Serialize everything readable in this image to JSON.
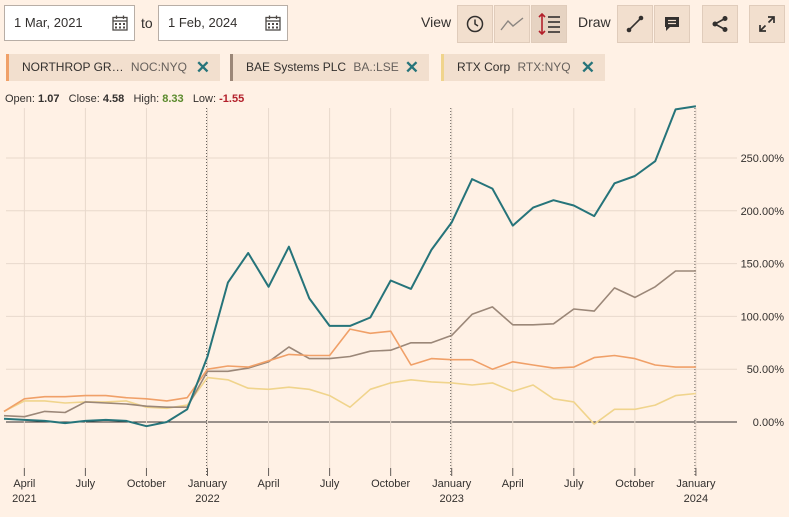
{
  "controls": {
    "start_date": "1 Mar, 2021",
    "to_label": "to",
    "end_date": "1 Feb, 2024",
    "view_label": "View",
    "draw_label": "Draw"
  },
  "stats": {
    "open_label": "Open:",
    "open": "1.07",
    "close_label": "Close:",
    "close": "4.58",
    "high_label": "High:",
    "high": "8.33",
    "low_label": "Low:",
    "low": "-1.55",
    "colors": {
      "high": "#5a8a2c",
      "low": "#b3202b"
    }
  },
  "chips": [
    {
      "name": "NORTHROP GR…",
      "symbol": "NOC:NYQ",
      "color": "#f0a068"
    },
    {
      "name": "BAE Systems PLC",
      "symbol": "BA.:LSE",
      "color": "#9b8778"
    },
    {
      "name": "RTX Corp",
      "symbol": "RTX:NYQ",
      "color": "#f0d48c"
    }
  ],
  "chart_data": {
    "type": "line",
    "ylim": [
      -10,
      290
    ],
    "y_ticks": [
      {
        "value": 0,
        "label": "0.00%"
      },
      {
        "value": 50,
        "label": "50.00%"
      },
      {
        "value": 100,
        "label": "100.00%"
      },
      {
        "value": 150,
        "label": "150.00%"
      },
      {
        "value": 200,
        "label": "200.00%"
      },
      {
        "value": 250,
        "label": "250.00%"
      }
    ],
    "x_range": [
      0,
      35.3
    ],
    "x_ticks": [
      {
        "x": 1,
        "label": "April",
        "year": "2021"
      },
      {
        "x": 4,
        "label": "July",
        "year": ""
      },
      {
        "x": 7,
        "label": "October",
        "year": ""
      },
      {
        "x": 10,
        "label": "January",
        "year": "2022"
      },
      {
        "x": 13,
        "label": "April",
        "year": ""
      },
      {
        "x": 16,
        "label": "July",
        "year": ""
      },
      {
        "x": 19,
        "label": "October",
        "year": ""
      },
      {
        "x": 22,
        "label": "January",
        "year": "2023"
      },
      {
        "x": 25,
        "label": "April",
        "year": ""
      },
      {
        "x": 28,
        "label": "July",
        "year": ""
      },
      {
        "x": 31,
        "label": "October",
        "year": ""
      },
      {
        "x": 34,
        "label": "January",
        "year": "2024"
      }
    ],
    "year_dividers": [
      10,
      22,
      34
    ],
    "x": [
      0,
      1,
      2,
      3,
      4,
      5,
      6,
      7,
      8,
      9,
      10,
      11,
      12,
      13,
      14,
      15,
      16,
      17,
      18,
      19,
      20,
      21,
      22,
      23,
      24,
      25,
      26,
      27,
      28,
      29,
      30,
      31,
      32,
      33,
      34,
      35
    ],
    "series": [
      {
        "color": "#26747a",
        "values": [
          3,
          2,
          1,
          -1,
          1,
          2,
          1,
          -4,
          0,
          12,
          62,
          132,
          160,
          128,
          166,
          117,
          91,
          91,
          99,
          134,
          126,
          163,
          189,
          230,
          221,
          186,
          203,
          210,
          205,
          195,
          226,
          233,
          247,
          296,
          299,
          null
        ]
      },
      {
        "color": "#f0a068",
        "values": [
          10,
          22,
          24,
          24,
          25,
          25,
          23,
          22,
          20,
          23,
          50,
          53,
          52,
          58,
          64,
          63,
          63,
          88,
          84,
          86,
          54,
          60,
          59,
          59,
          50,
          57,
          54,
          51,
          52,
          61,
          63,
          60,
          54,
          52,
          52,
          null
        ]
      },
      {
        "color": "#9b8778",
        "values": [
          6,
          5,
          10,
          9,
          19,
          18,
          17,
          15,
          14,
          14,
          48,
          48,
          51,
          57,
          71,
          60,
          60,
          62,
          67,
          68,
          75,
          75,
          82,
          102,
          109,
          92,
          92,
          93,
          107,
          105,
          127,
          118,
          128,
          143,
          143,
          null
        ]
      },
      {
        "color": "#f0d48c",
        "values": [
          10,
          20,
          20,
          18,
          19,
          19,
          20,
          14,
          13,
          16,
          42,
          40,
          32,
          31,
          33,
          31,
          25,
          14,
          31,
          37,
          40,
          38,
          37,
          35,
          37,
          29,
          35,
          22,
          19,
          -2,
          12,
          12,
          16,
          25,
          27,
          null
        ]
      }
    ]
  }
}
